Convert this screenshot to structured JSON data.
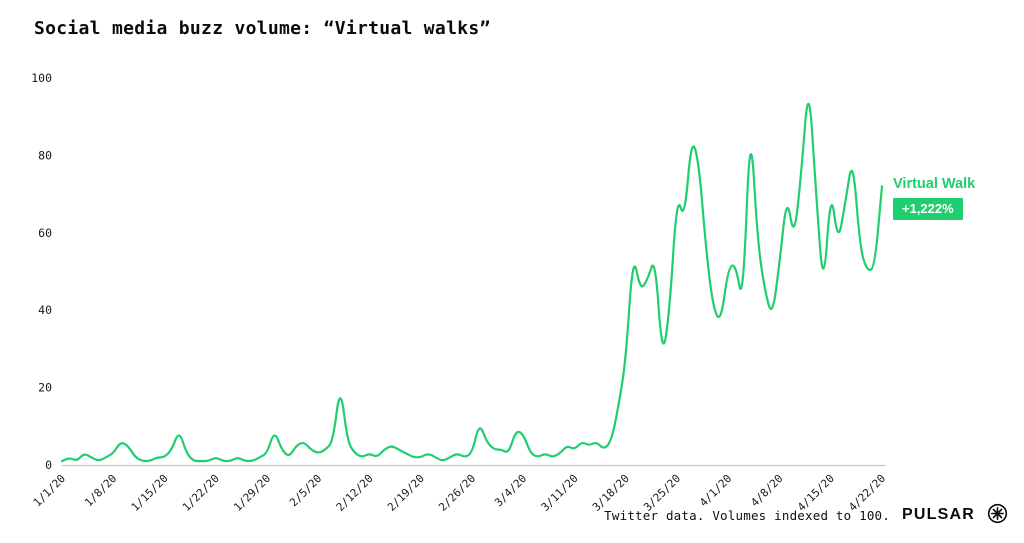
{
  "title": "Social media buzz volume: “Virtual walks”",
  "annotation": {
    "series_label": "Virtual Walk",
    "badge": "+1,222%"
  },
  "footer": {
    "note": "Twitter data. Volumes indexed to 100.",
    "brand": "PULSAR",
    "logo_icon": "asterisk-circle-icon"
  },
  "colors": {
    "line": "#1fce6e",
    "series_label": "#1fce6e",
    "badge_bg": "#1fce6e",
    "badge_text": "#ffffff",
    "axis_line": "#c9c9c9",
    "tick_text": "#1a1a1a",
    "title_text": "#0b0b0b"
  },
  "chart_data": {
    "type": "line",
    "title": "Social media buzz volume: “Virtual walks”",
    "source_note": "Twitter data. Volumes indexed to 100.",
    "x_frequency": "daily",
    "x_start_label": "1/1/20",
    "x_tick_labels": [
      "1/1/20",
      "1/8/20",
      "1/15/20",
      "1/22/20",
      "1/29/20",
      "2/5/20",
      "2/12/20",
      "2/19/20",
      "2/26/20",
      "3/4/20",
      "3/11/20",
      "3/18/20",
      "3/25/20",
      "4/1/20",
      "4/8/20",
      "4/15/20",
      "4/22/20"
    ],
    "x_tick_every": 7,
    "y_ticks": [
      0,
      20,
      40,
      60,
      80,
      100
    ],
    "ylim": [
      0,
      100
    ],
    "grid": false,
    "legend_position": "right-annotation",
    "series": [
      {
        "name": "Virtual Walk",
        "change_label": "+1,222%",
        "values": [
          1,
          2,
          1,
          3,
          2,
          1,
          2,
          3,
          6,
          5,
          2,
          1,
          1,
          2,
          2,
          4,
          9,
          3,
          1,
          1,
          1,
          2,
          1,
          1,
          2,
          1,
          1,
          2,
          3,
          9,
          4,
          2,
          5,
          6,
          4,
          3,
          4,
          6,
          21,
          6,
          3,
          2,
          3,
          2,
          4,
          5,
          4,
          3,
          2,
          2,
          3,
          2,
          1,
          2,
          3,
          2,
          3,
          11,
          6,
          4,
          4,
          3,
          9,
          8,
          3,
          2,
          3,
          2,
          3,
          5,
          4,
          6,
          5,
          6,
          4,
          6,
          15,
          27,
          55,
          45,
          48,
          54,
          27,
          40,
          70,
          63,
          85,
          78,
          55,
          40,
          37,
          51,
          52,
          41,
          90,
          58,
          45,
          38,
          52,
          70,
          58,
          76,
          100,
          70,
          44,
          72,
          57,
          68,
          80,
          56,
          50,
          51,
          72
        ]
      }
    ]
  }
}
